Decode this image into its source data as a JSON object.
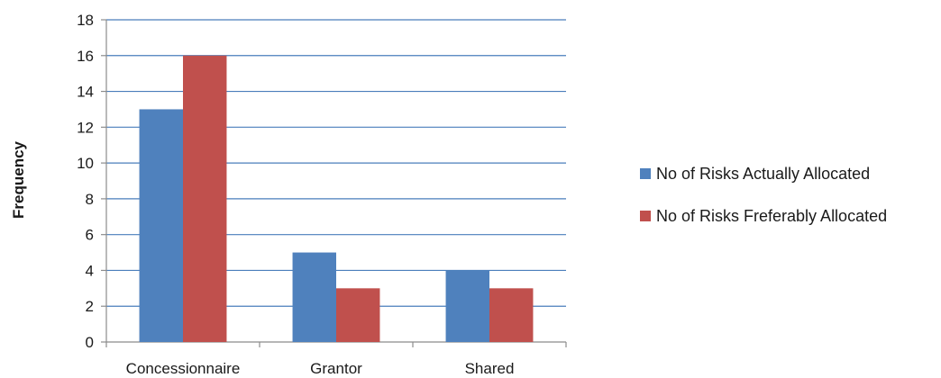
{
  "chart_data": {
    "type": "bar",
    "categories": [
      "Concessionnaire",
      "Grantor",
      "Shared"
    ],
    "series": [
      {
        "name": "No of Risks Actually Allocated",
        "values": [
          13,
          5,
          4
        ],
        "color": "#4f81bd"
      },
      {
        "name": "No of Risks Freferably Allocated",
        "values": [
          16,
          3,
          3
        ],
        "color": "#c0504d"
      }
    ],
    "title": "",
    "xlabel": "",
    "ylabel": "Frequency",
    "ylim": [
      0,
      18
    ],
    "yticks": [
      0,
      2,
      4,
      6,
      8,
      10,
      12,
      14,
      16,
      18
    ],
    "grid": true,
    "gridline_color": "#4a7ebb",
    "legend_position": "right"
  }
}
